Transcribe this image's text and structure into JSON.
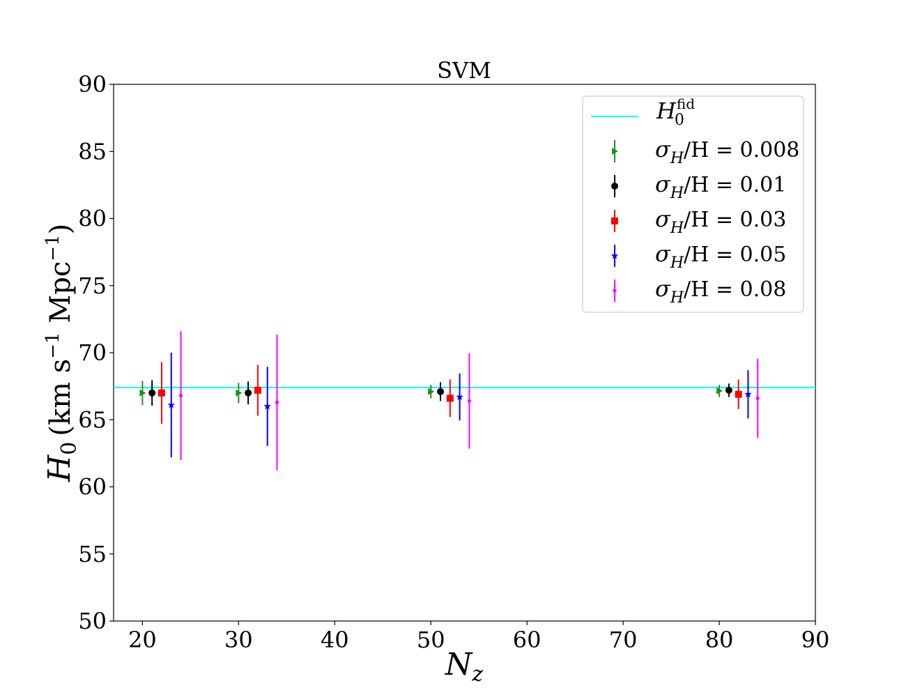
{
  "chart_data": {
    "type": "scatter",
    "title": "SVM",
    "xlabel": {
      "main": "N",
      "sub": "z"
    },
    "ylabel": {
      "main": "H",
      "sub": "0",
      "units_pre": "(km s",
      "units_exp1": "−1",
      "units_mid": " Mpc",
      "units_exp2": "−1",
      "units_post": ")"
    },
    "xlim": [
      17,
      90
    ],
    "ylim": [
      50,
      90
    ],
    "xticks": [
      20,
      30,
      40,
      50,
      60,
      70,
      80,
      90
    ],
    "yticks": [
      50,
      55,
      60,
      65,
      70,
      75,
      80,
      85,
      90
    ],
    "grid": false,
    "legend_position": "top-right",
    "reference_line": {
      "label_main": "H",
      "label_sub": "0",
      "label_sup": "fid",
      "y": 67.4,
      "color": "#00ffff"
    },
    "series": [
      {
        "name": "σH/H = 0.008",
        "legend_prefix": "σ",
        "legend_sub": "H",
        "legend_suffix": "/H = 0.008",
        "color": "#228b22",
        "marker": "triangle-right",
        "points": [
          {
            "x": 20,
            "y": 67.0,
            "err": 0.9
          },
          {
            "x": 30,
            "y": 67.0,
            "err": 0.75
          },
          {
            "x": 50,
            "y": 67.1,
            "err": 0.5
          },
          {
            "x": 80,
            "y": 67.15,
            "err": 0.45
          }
        ]
      },
      {
        "name": "σH/H = 0.01",
        "legend_prefix": "σ",
        "legend_sub": "H",
        "legend_suffix": "/H = 0.01",
        "color": "#000000",
        "marker": "circle",
        "points": [
          {
            "x": 21,
            "y": 67.0,
            "err": 0.95
          },
          {
            "x": 31,
            "y": 67.0,
            "err": 0.85
          },
          {
            "x": 51,
            "y": 67.1,
            "err": 0.7
          },
          {
            "x": 81,
            "y": 67.2,
            "err": 0.5
          }
        ]
      },
      {
        "name": "σH/H = 0.03",
        "legend_prefix": "σ",
        "legend_sub": "H",
        "legend_suffix": "/H = 0.03",
        "color": "#ff0000",
        "marker": "square",
        "points": [
          {
            "x": 22,
            "y": 67.0,
            "err": 2.3
          },
          {
            "x": 32,
            "y": 67.2,
            "err": 1.9
          },
          {
            "x": 52,
            "y": 66.6,
            "err": 1.4
          },
          {
            "x": 82,
            "y": 66.9,
            "err": 1.1
          }
        ]
      },
      {
        "name": "σH/H = 0.05",
        "legend_prefix": "σ",
        "legend_sub": "H",
        "legend_suffix": "/H = 0.05",
        "color": "#0000ff",
        "marker": "star",
        "points": [
          {
            "x": 23,
            "y": 66.1,
            "err": 3.9
          },
          {
            "x": 33,
            "y": 66.0,
            "err": 2.95
          },
          {
            "x": 53,
            "y": 66.7,
            "err": 1.75
          },
          {
            "x": 83,
            "y": 66.9,
            "err": 1.8
          }
        ]
      },
      {
        "name": "σH/H = 0.08",
        "legend_prefix": "σ",
        "legend_sub": "H",
        "legend_suffix": "/H = 0.08",
        "color": "#ff00ff",
        "marker": "dot",
        "points": [
          {
            "x": 24,
            "y": 66.8,
            "err": 4.8
          },
          {
            "x": 34,
            "y": 66.3,
            "err": 5.05
          },
          {
            "x": 54,
            "y": 66.4,
            "err": 3.55
          },
          {
            "x": 84,
            "y": 66.6,
            "err": 2.95
          }
        ]
      }
    ]
  }
}
